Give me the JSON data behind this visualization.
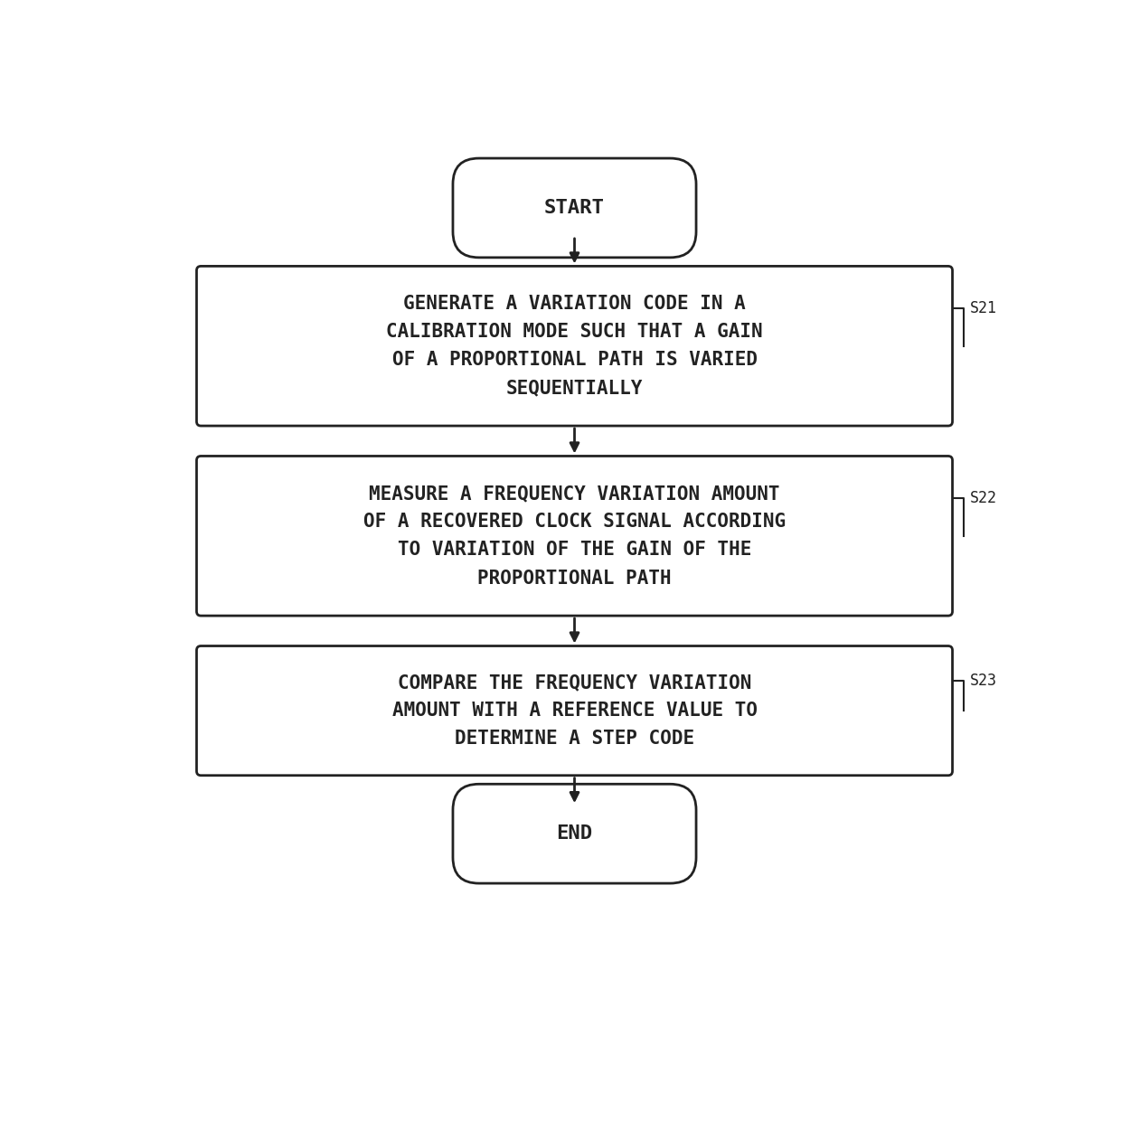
{
  "bg_color": "#ffffff",
  "box_fill_color": "#ffffff",
  "box_edge_color": "#222222",
  "text_color": "#222222",
  "arrow_color": "#222222",
  "start_label": "START",
  "end_label": "END",
  "step_labels": [
    "GENERATE A VARIATION CODE IN A\nCALIBRATION MODE SUCH THAT A GAIN\nOF A PROPORTIONAL PATH IS VARIED\nSEQUENTIALLY",
    "MEASURE A FREQUENCY VARIATION AMOUNT\nOF A RECOVERED CLOCK SIGNAL ACCORDING\nTO VARIATION OF THE GAIN OF THE\nPROPORTIONAL PATH",
    "COMPARE THE FREQUENCY VARIATION\nAMOUNT WITH A REFERENCE VALUE TO\nDETERMINE A STEP CODE"
  ],
  "step_ids": [
    "S21",
    "S22",
    "S23"
  ],
  "figsize": [
    12.4,
    12.4
  ],
  "dpi": 100
}
